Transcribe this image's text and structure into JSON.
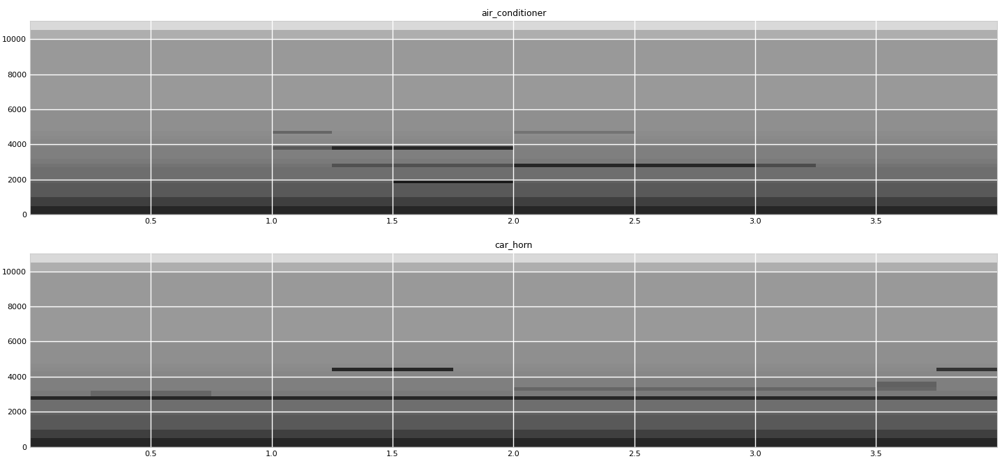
{
  "chart_data": [
    {
      "type": "heatmap",
      "title": "air_conditioner",
      "color": "gray_r",
      "grid": true,
      "x_edges": [
        0,
        0.25,
        0.5,
        0.75,
        1.0,
        1.25,
        1.5,
        1.75,
        2.0,
        2.25,
        2.5,
        2.75,
        3.0,
        3.25,
        3.5,
        3.75,
        4.0
      ],
      "y_edges": [
        0,
        500,
        1000,
        1800,
        1950,
        2700,
        2900,
        3200,
        3400,
        3700,
        3900,
        4300,
        4500,
        4600,
        4750,
        6000,
        10000,
        10500,
        11025
      ],
      "value_range": [
        0,
        1
      ],
      "cells": [
        [
          0.85,
          0.85,
          0.85,
          0.85,
          0.85,
          0.85,
          0.85,
          0.85,
          0.85,
          0.85,
          0.85,
          0.85,
          0.85,
          0.85,
          0.85,
          0.85
        ],
        [
          0.75,
          0.75,
          0.75,
          0.75,
          0.75,
          0.75,
          0.75,
          0.75,
          0.75,
          0.75,
          0.75,
          0.75,
          0.75,
          0.75,
          0.75,
          0.75
        ],
        [
          0.65,
          0.65,
          0.65,
          0.65,
          0.65,
          0.65,
          0.65,
          0.65,
          0.65,
          0.65,
          0.65,
          0.65,
          0.65,
          0.65,
          0.65,
          0.65
        ],
        [
          0.62,
          0.62,
          0.62,
          0.62,
          0.62,
          0.62,
          0.9,
          0.9,
          0.62,
          0.62,
          0.62,
          0.62,
          0.62,
          0.62,
          0.62,
          0.62
        ],
        [
          0.57,
          0.57,
          0.57,
          0.57,
          0.57,
          0.57,
          0.57,
          0.57,
          0.57,
          0.57,
          0.57,
          0.57,
          0.57,
          0.57,
          0.57,
          0.57
        ],
        [
          0.55,
          0.55,
          0.55,
          0.55,
          0.55,
          0.68,
          0.68,
          0.68,
          0.85,
          0.85,
          0.85,
          0.85,
          0.7,
          0.55,
          0.55,
          0.55
        ],
        [
          0.52,
          0.52,
          0.52,
          0.52,
          0.52,
          0.52,
          0.52,
          0.52,
          0.52,
          0.52,
          0.52,
          0.52,
          0.52,
          0.52,
          0.52,
          0.52
        ],
        [
          0.5,
          0.5,
          0.5,
          0.5,
          0.5,
          0.5,
          0.5,
          0.5,
          0.5,
          0.5,
          0.5,
          0.5,
          0.5,
          0.5,
          0.5,
          0.5
        ],
        [
          0.5,
          0.5,
          0.5,
          0.5,
          0.5,
          0.5,
          0.5,
          0.5,
          0.5,
          0.5,
          0.5,
          0.5,
          0.5,
          0.5,
          0.5,
          0.5
        ],
        [
          0.5,
          0.5,
          0.5,
          0.5,
          0.65,
          0.85,
          0.85,
          0.85,
          0.5,
          0.5,
          0.5,
          0.5,
          0.5,
          0.5,
          0.5,
          0.5
        ],
        [
          0.47,
          0.47,
          0.47,
          0.47,
          0.47,
          0.47,
          0.47,
          0.47,
          0.47,
          0.47,
          0.47,
          0.47,
          0.47,
          0.47,
          0.47,
          0.47
        ],
        [
          0.46,
          0.46,
          0.46,
          0.46,
          0.46,
          0.46,
          0.46,
          0.46,
          0.46,
          0.46,
          0.46,
          0.46,
          0.46,
          0.46,
          0.46,
          0.46
        ],
        [
          0.45,
          0.45,
          0.45,
          0.45,
          0.45,
          0.45,
          0.45,
          0.45,
          0.45,
          0.45,
          0.45,
          0.45,
          0.45,
          0.45,
          0.45,
          0.45
        ],
        [
          0.45,
          0.45,
          0.45,
          0.45,
          0.6,
          0.45,
          0.45,
          0.45,
          0.55,
          0.55,
          0.45,
          0.45,
          0.45,
          0.45,
          0.45,
          0.45
        ],
        [
          0.44,
          0.44,
          0.44,
          0.44,
          0.44,
          0.44,
          0.44,
          0.44,
          0.44,
          0.44,
          0.44,
          0.44,
          0.44,
          0.44,
          0.44,
          0.44
        ],
        [
          0.4,
          0.4,
          0.4,
          0.4,
          0.4,
          0.4,
          0.4,
          0.4,
          0.4,
          0.4,
          0.4,
          0.4,
          0.4,
          0.4,
          0.4,
          0.4
        ],
        [
          0.32,
          0.32,
          0.32,
          0.32,
          0.32,
          0.32,
          0.32,
          0.32,
          0.32,
          0.32,
          0.32,
          0.32,
          0.32,
          0.32,
          0.32,
          0.32
        ],
        [
          0.15,
          0.15,
          0.15,
          0.15,
          0.15,
          0.15,
          0.15,
          0.15,
          0.15,
          0.15,
          0.15,
          0.15,
          0.15,
          0.15,
          0.15,
          0.15
        ]
      ],
      "xlim": [
        0,
        4.0
      ],
      "ylim": [
        0,
        11025
      ],
      "xticks": [
        0.5,
        {
          "value": 1,
          "label": "1.0"
        },
        1.5,
        {
          "value": 2,
          "label": "2.0"
        },
        2.5,
        {
          "value": 3,
          "label": "3.0"
        },
        3.5
      ],
      "yticks": [
        0,
        2000,
        4000,
        6000,
        8000,
        10000
      ]
    },
    {
      "type": "heatmap",
      "title": "car_horn",
      "color": "gray_r",
      "grid": true,
      "x_edges": [
        0,
        0.25,
        0.5,
        0.75,
        1.0,
        1.25,
        1.5,
        1.75,
        2.0,
        2.25,
        2.5,
        2.75,
        3.0,
        3.25,
        3.5,
        3.75,
        4.0
      ],
      "y_edges": [
        0,
        500,
        1000,
        1800,
        1950,
        2700,
        2900,
        3200,
        3400,
        3700,
        3900,
        4300,
        4500,
        4600,
        4750,
        6000,
        10000,
        10500,
        11025
      ],
      "value_range": [
        0,
        1
      ],
      "cells": [
        [
          0.85,
          0.85,
          0.85,
          0.85,
          0.85,
          0.85,
          0.85,
          0.85,
          0.85,
          0.85,
          0.85,
          0.85,
          0.85,
          0.85,
          0.85,
          0.85
        ],
        [
          0.75,
          0.75,
          0.75,
          0.75,
          0.75,
          0.75,
          0.75,
          0.75,
          0.75,
          0.75,
          0.75,
          0.75,
          0.75,
          0.75,
          0.75,
          0.75
        ],
        [
          0.65,
          0.65,
          0.65,
          0.65,
          0.65,
          0.65,
          0.65,
          0.65,
          0.65,
          0.65,
          0.65,
          0.65,
          0.65,
          0.65,
          0.65,
          0.65
        ],
        [
          0.62,
          0.62,
          0.62,
          0.62,
          0.62,
          0.62,
          0.62,
          0.62,
          0.62,
          0.62,
          0.62,
          0.62,
          0.62,
          0.62,
          0.62,
          0.62
        ],
        [
          0.57,
          0.57,
          0.57,
          0.57,
          0.57,
          0.57,
          0.57,
          0.57,
          0.57,
          0.57,
          0.57,
          0.57,
          0.57,
          0.57,
          0.57,
          0.57
        ],
        [
          0.85,
          0.85,
          0.85,
          0.85,
          0.85,
          0.85,
          0.85,
          0.85,
          0.85,
          0.85,
          0.85,
          0.85,
          0.85,
          0.85,
          0.85,
          0.85
        ],
        [
          0.52,
          0.6,
          0.6,
          0.52,
          0.52,
          0.52,
          0.52,
          0.52,
          0.52,
          0.52,
          0.52,
          0.52,
          0.52,
          0.52,
          0.52,
          0.52
        ],
        [
          0.5,
          0.5,
          0.5,
          0.5,
          0.5,
          0.5,
          0.5,
          0.5,
          0.6,
          0.6,
          0.6,
          0.6,
          0.6,
          0.6,
          0.6,
          0.5
        ],
        [
          0.5,
          0.5,
          0.5,
          0.5,
          0.5,
          0.5,
          0.5,
          0.5,
          0.5,
          0.5,
          0.5,
          0.5,
          0.5,
          0.5,
          0.62,
          0.5
        ],
        [
          0.5,
          0.5,
          0.5,
          0.5,
          0.5,
          0.5,
          0.5,
          0.5,
          0.5,
          0.5,
          0.5,
          0.5,
          0.5,
          0.5,
          0.5,
          0.5
        ],
        [
          0.47,
          0.47,
          0.47,
          0.47,
          0.47,
          0.47,
          0.47,
          0.47,
          0.47,
          0.47,
          0.47,
          0.47,
          0.47,
          0.47,
          0.47,
          0.47
        ],
        [
          0.46,
          0.46,
          0.46,
          0.46,
          0.46,
          0.85,
          0.85,
          0.46,
          0.46,
          0.46,
          0.46,
          0.46,
          0.46,
          0.46,
          0.46,
          0.8
        ],
        [
          0.45,
          0.45,
          0.45,
          0.45,
          0.45,
          0.45,
          0.45,
          0.45,
          0.45,
          0.45,
          0.45,
          0.45,
          0.45,
          0.45,
          0.45,
          0.45
        ],
        [
          0.45,
          0.45,
          0.45,
          0.45,
          0.45,
          0.45,
          0.45,
          0.45,
          0.45,
          0.45,
          0.45,
          0.45,
          0.45,
          0.45,
          0.45,
          0.45
        ],
        [
          0.44,
          0.44,
          0.44,
          0.44,
          0.44,
          0.44,
          0.44,
          0.44,
          0.44,
          0.44,
          0.44,
          0.44,
          0.44,
          0.44,
          0.44,
          0.44
        ],
        [
          0.4,
          0.4,
          0.4,
          0.4,
          0.4,
          0.4,
          0.4,
          0.4,
          0.4,
          0.4,
          0.4,
          0.4,
          0.4,
          0.4,
          0.4,
          0.4
        ],
        [
          0.32,
          0.32,
          0.32,
          0.32,
          0.32,
          0.32,
          0.32,
          0.32,
          0.32,
          0.32,
          0.32,
          0.32,
          0.32,
          0.32,
          0.32,
          0.32
        ],
        [
          0.15,
          0.15,
          0.15,
          0.15,
          0.15,
          0.15,
          0.15,
          0.15,
          0.15,
          0.15,
          0.15,
          0.15,
          0.15,
          0.15,
          0.15,
          0.15
        ]
      ],
      "xlim": [
        0,
        4.0
      ],
      "ylim": [
        0,
        11025
      ],
      "xticks": [
        0.5,
        {
          "value": 1,
          "label": "1.0"
        },
        1.5,
        {
          "value": 2,
          "label": "2.0"
        },
        2.5,
        {
          "value": 3,
          "label": "3.0"
        },
        3.5
      ],
      "yticks": [
        0,
        2000,
        4000,
        6000,
        8000,
        10000
      ]
    }
  ]
}
